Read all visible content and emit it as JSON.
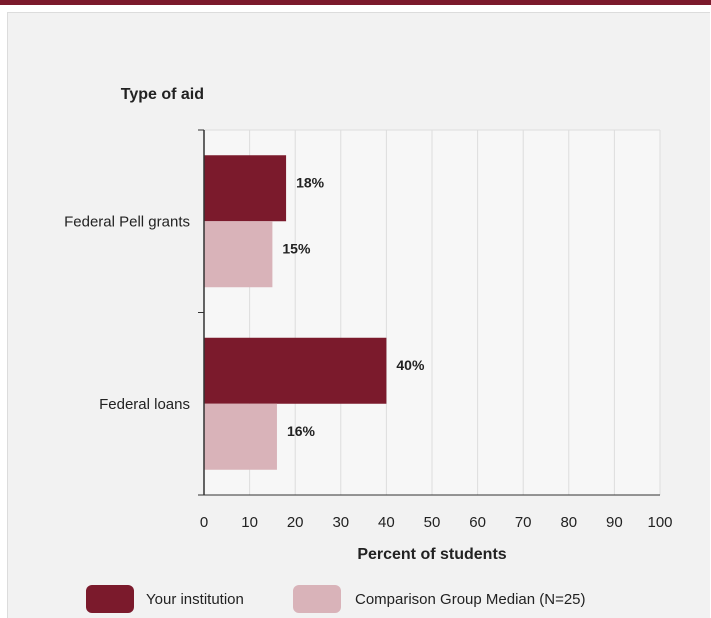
{
  "chart_data": {
    "type": "bar",
    "orientation": "horizontal",
    "ylabel": "Type of aid",
    "xlabel": "Percent of students",
    "categories": [
      "Federal Pell grants",
      "Federal loans"
    ],
    "series": [
      {
        "name": "Your institution",
        "values": [
          18,
          40
        ],
        "labels": [
          "18%",
          "40%"
        ],
        "color": "#7b1a2c"
      },
      {
        "name": "Comparison Group Median (N=25)",
        "values": [
          15,
          16
        ],
        "labels": [
          "15%",
          "16%"
        ],
        "color": "#d9b3b9"
      }
    ],
    "xlim": [
      0,
      100
    ],
    "xticks": [
      "0",
      "10",
      "20",
      "30",
      "40",
      "50",
      "60",
      "70",
      "80",
      "90",
      "100"
    ],
    "grid": true,
    "legend": "bottom"
  },
  "colors": {
    "accent": "#7b1a2c",
    "plot_background": "#f7f7f7",
    "panel_background": "#f2f2f2"
  }
}
